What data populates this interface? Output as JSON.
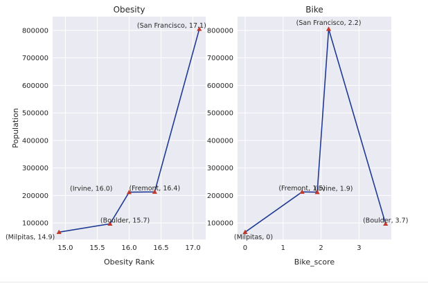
{
  "chart_data": [
    {
      "type": "line",
      "title": "Obesity",
      "xlabel": "Obesity Rank",
      "ylabel": "Population",
      "xlim": [
        14.8,
        17.2
      ],
      "ylim": [
        40000,
        850000
      ],
      "xticks": [
        15.0,
        15.5,
        16.0,
        16.5,
        17.0
      ],
      "xtick_labels": [
        "15.0",
        "15.5",
        "16.0",
        "16.5",
        "17.0"
      ],
      "yticks": [
        100000,
        200000,
        300000,
        400000,
        500000,
        600000,
        700000,
        800000
      ],
      "ytick_labels": [
        "100000",
        "200000",
        "300000",
        "400000",
        "500000",
        "600000",
        "700000",
        "800000"
      ],
      "grid": true,
      "series": [
        {
          "x": [
            14.9,
            15.7,
            16.0,
            16.4,
            17.1
          ],
          "y": [
            67000,
            97000,
            212000,
            213000,
            805000
          ],
          "annotations": [
            "(Milpitas, 14.9)",
            "(Boulder, 15.7)",
            "(Irvine, 16.0)",
            "(Fremont, 16.4)",
            "(San Francisco, 17.1)"
          ]
        }
      ],
      "line_color": "#1f3a93",
      "marker_color": "#c0392b"
    },
    {
      "type": "line",
      "title": "Bike",
      "xlabel": "Bike_score",
      "ylabel": "",
      "xlim": [
        -0.2,
        3.85
      ],
      "ylim": [
        40000,
        850000
      ],
      "xticks": [
        0,
        1,
        2,
        3
      ],
      "xtick_labels": [
        "0",
        "1",
        "2",
        "3"
      ],
      "yticks": [
        100000,
        200000,
        300000,
        400000,
        500000,
        600000,
        700000,
        800000
      ],
      "ytick_labels": [
        "100000",
        "200000",
        "300000",
        "400000",
        "500000",
        "600000",
        "700000",
        "800000"
      ],
      "grid": true,
      "series": [
        {
          "x": [
            0,
            1.5,
            1.9,
            2.2,
            3.7
          ],
          "y": [
            67000,
            213000,
            212000,
            805000,
            97000
          ],
          "annotations": [
            "(Milpitas, 0)",
            "(Fremont, 1.5)",
            "(Irvine, 1.9)",
            "(San Francisco, 2.2)",
            "(Boulder, 3.7)"
          ]
        }
      ],
      "line_color": "#1f3a93",
      "marker_color": "#c0392b"
    }
  ]
}
